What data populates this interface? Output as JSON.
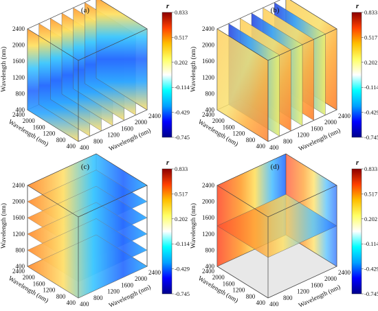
{
  "figure": {
    "colorbar": {
      "symbol": "r",
      "ticks": [
        "0.833",
        "0.517",
        "0.202",
        "-0.114",
        "-0.429",
        "-0.745"
      ],
      "range": [
        -0.745,
        0.833
      ],
      "colors": [
        "#00008b",
        "#0000ff",
        "#00a0ff",
        "#00ffff",
        "#ffffff",
        "#ffff66",
        "#ffbf00",
        "#ff4000",
        "#8b0000"
      ]
    }
  },
  "chart_data": [
    {
      "type": "heatmap",
      "panel_label": "(a)",
      "slices": "vertical planes stacked along one horizontal axis",
      "slice_count": 7,
      "zlabel": "Wavelength (nm)",
      "xlabel": "Wavelength (nm)",
      "ylabel": "Wavelength (nm)",
      "z_ticks": [
        "400",
        "800",
        "1200",
        "1600",
        "2000",
        "2400"
      ],
      "x_ticks": [
        "400",
        "800",
        "1200",
        "1600",
        "2000",
        "2400"
      ],
      "y_ticks": [
        "400",
        "800",
        "1200",
        "1600",
        "2000",
        "2400"
      ],
      "value_range": [
        -0.745,
        0.833
      ]
    },
    {
      "type": "heatmap",
      "panel_label": "(b)",
      "slices": "vertical planes stacked along the other horizontal axis",
      "slice_count": 7,
      "zlabel": "Wavelength (nm)",
      "xlabel": "Wavelength (nm)",
      "ylabel": "Wavelength (nm)",
      "z_ticks": [
        "400",
        "800",
        "1200",
        "1600",
        "2000",
        "2400"
      ],
      "x_ticks": [
        "400",
        "800",
        "1200",
        "1600",
        "2000",
        "2400"
      ],
      "y_ticks": [
        "400",
        "800",
        "1200",
        "1600",
        "2000",
        "2400"
      ],
      "value_range": [
        -0.745,
        0.833
      ]
    },
    {
      "type": "heatmap",
      "panel_label": "(c)",
      "slices": "horizontal planes stacked vertically",
      "slice_count": 6,
      "zlabel": "Wavelength (nm)",
      "xlabel": "Wavelength (nm)",
      "ylabel": "Wavelength (nm)",
      "z_ticks": [
        "400",
        "800",
        "1200",
        "1600",
        "2000",
        "2400"
      ],
      "x_ticks": [
        "400",
        "800",
        "1200",
        "1600",
        "2000",
        "2400"
      ],
      "y_ticks": [
        "400",
        "800",
        "1200",
        "1600",
        "2000",
        "2400"
      ],
      "value_range": [
        -0.745,
        0.833
      ]
    },
    {
      "type": "heatmap",
      "panel_label": "(d)",
      "slices": "orthogonal planes: back wall, side wall and one horizontal plane",
      "slice_count": 3,
      "zlabel": "Wavelength (nm)",
      "xlabel": "Wavelength (nm)",
      "ylabel": "Wavelength (nm)",
      "z_ticks": [
        "400",
        "800",
        "1200",
        "1600",
        "2000",
        "2400"
      ],
      "x_ticks": [
        "400",
        "800",
        "1200",
        "1600",
        "2000",
        "2400"
      ],
      "y_ticks": [
        "400",
        "800",
        "1200",
        "1600",
        "2000",
        "2400"
      ],
      "value_range": [
        -0.745,
        0.833
      ]
    }
  ]
}
